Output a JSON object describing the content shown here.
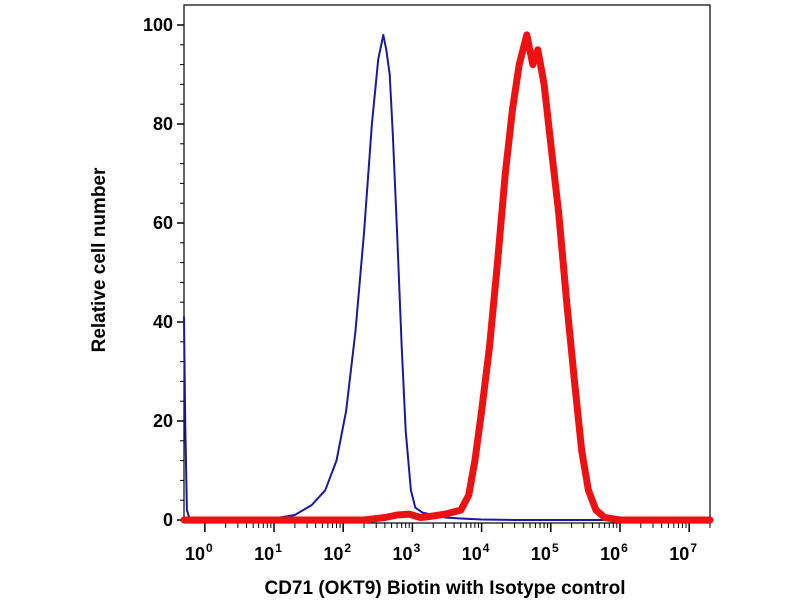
{
  "chart_data": {
    "type": "line",
    "title": "",
    "xlabel": "CD71 (OKT9) Biotin with Isotype control",
    "ylabel": "Relative cell number",
    "x_scale": "log",
    "xlim": [
      0.5,
      20000000
    ],
    "ylim": [
      0,
      100
    ],
    "grid": false,
    "legend": "none",
    "x_ticks": [
      {
        "value": 1,
        "base": "10",
        "exp": "0"
      },
      {
        "value": 10,
        "base": "10",
        "exp": "1"
      },
      {
        "value": 100,
        "base": "10",
        "exp": "2"
      },
      {
        "value": 1000,
        "base": "10",
        "exp": "3"
      },
      {
        "value": 10000,
        "base": "10",
        "exp": "4"
      },
      {
        "value": 100000,
        "base": "10",
        "exp": "5"
      },
      {
        "value": 1000000,
        "base": "10",
        "exp": "6"
      },
      {
        "value": 10000000,
        "base": "10",
        "exp": "7"
      }
    ],
    "y_ticks": [
      {
        "value": 0,
        "label": "0"
      },
      {
        "value": 20,
        "label": "20"
      },
      {
        "value": 40,
        "label": "40"
      },
      {
        "value": 60,
        "label": "60"
      },
      {
        "value": 80,
        "label": "80"
      },
      {
        "value": 100,
        "label": "100"
      }
    ],
    "series": [
      {
        "color": "#1a1a9e",
        "points": [
          [
            0.5,
            41
          ],
          [
            0.52,
            20
          ],
          [
            0.55,
            2
          ],
          [
            0.6,
            0.3
          ],
          [
            1,
            0
          ],
          [
            5,
            0
          ],
          [
            10,
            0.3
          ],
          [
            20,
            1
          ],
          [
            35,
            3
          ],
          [
            55,
            6
          ],
          [
            80,
            12
          ],
          [
            110,
            22
          ],
          [
            150,
            38
          ],
          [
            200,
            58
          ],
          [
            260,
            80
          ],
          [
            320,
            93
          ],
          [
            380,
            98
          ],
          [
            420,
            95
          ],
          [
            470,
            90
          ],
          [
            520,
            78
          ],
          [
            600,
            58
          ],
          [
            700,
            35
          ],
          [
            800,
            18
          ],
          [
            950,
            6
          ],
          [
            1100,
            2.5
          ],
          [
            1400,
            1.5
          ],
          [
            2000,
            1
          ],
          [
            3000,
            0.5
          ],
          [
            5000,
            0.3
          ],
          [
            10000,
            0.1
          ],
          [
            30000,
            0
          ],
          [
            20000000,
            0
          ]
        ]
      },
      {
        "color": "#ee1111",
        "points": [
          [
            0.5,
            0
          ],
          [
            200,
            0
          ],
          [
            400,
            0.5
          ],
          [
            600,
            1
          ],
          [
            900,
            1.2
          ],
          [
            1300,
            0.5
          ],
          [
            2000,
            0.8
          ],
          [
            3000,
            1.2
          ],
          [
            5000,
            2
          ],
          [
            6500,
            5
          ],
          [
            8000,
            12
          ],
          [
            10000,
            22
          ],
          [
            13000,
            35
          ],
          [
            17000,
            52
          ],
          [
            22000,
            70
          ],
          [
            28000,
            83
          ],
          [
            35000,
            92
          ],
          [
            45000,
            98
          ],
          [
            55000,
            92
          ],
          [
            65000,
            95
          ],
          [
            80000,
            88
          ],
          [
            100000,
            76
          ],
          [
            130000,
            62
          ],
          [
            170000,
            44
          ],
          [
            220000,
            28
          ],
          [
            280000,
            14
          ],
          [
            350000,
            6
          ],
          [
            450000,
            2
          ],
          [
            600000,
            0.5
          ],
          [
            1000000,
            0
          ],
          [
            20000000,
            0
          ]
        ]
      }
    ]
  }
}
